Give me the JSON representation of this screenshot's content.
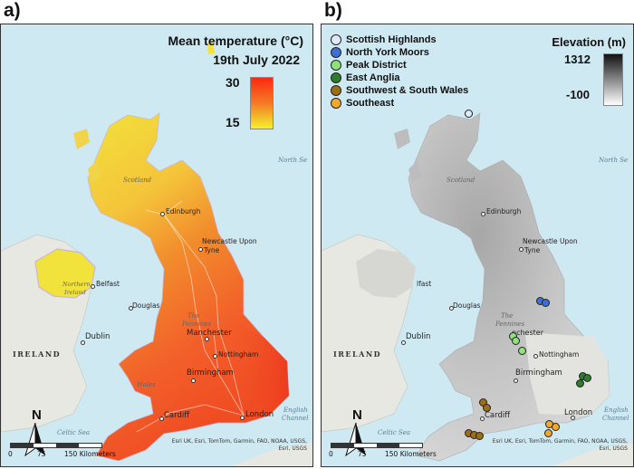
{
  "panel_a": {
    "letter": "a)",
    "title_line1": "Mean temperature (°C)",
    "title_line2": "19th July 2022",
    "colorbar_max": "30",
    "colorbar_min": "15",
    "colors": {
      "high": "#ff2a10",
      "mid": "#f47a26",
      "low": "#f4f02a"
    }
  },
  "panel_b": {
    "letter": "b)",
    "elevation_title": "Elevation (m)",
    "elevation_max": "1312",
    "elevation_min": "-100",
    "legend": [
      {
        "label": "Scottish Highlands",
        "color": "#dfe9f7"
      },
      {
        "label": "North York Moors",
        "color": "#3d6fd8"
      },
      {
        "label": "Peak District",
        "color": "#8ee27a"
      },
      {
        "label": "East Anglia",
        "color": "#2c7d2c"
      },
      {
        "label": "Southwest & South Wales",
        "color": "#9d6e15"
      },
      {
        "label": "Southeast",
        "color": "#f0a92c"
      }
    ]
  },
  "places": {
    "scotland": "Scotland",
    "edinburgh": "Edinburgh",
    "newcastle_1": "Newcastle Upon",
    "newcastle_2": "Tyne",
    "belfast": "Belfast",
    "northern_ireland_1": "Northern",
    "northern_ireland_2": "Ireland",
    "douglas": "Douglas",
    "dublin": "Dublin",
    "ireland": "IRELAND",
    "pennines_1": "The",
    "pennines_2": "Pennines",
    "manchester": "Manchester",
    "nottingham": "Nottingham",
    "birmingham": "Birmingham",
    "wales": "Wales",
    "cardiff": "Cardiff",
    "london": "London",
    "north_sea": "North Se",
    "celtic_sea": "Celtic Sea",
    "english_channel_1": "English",
    "english_channel_2": "Channel",
    "b_manchester": "nchester",
    "b_belfast": "lfast",
    "b_north_sea": "North Se"
  },
  "scale": {
    "s0": "0",
    "s75": "75",
    "s150": "150 Kilometers"
  },
  "north_label": "N",
  "attribution_1": "Esri UK, Esri, TomTom, Garmin, FAO, NOAA, USGS,",
  "attribution_2": "Esri, USGS"
}
